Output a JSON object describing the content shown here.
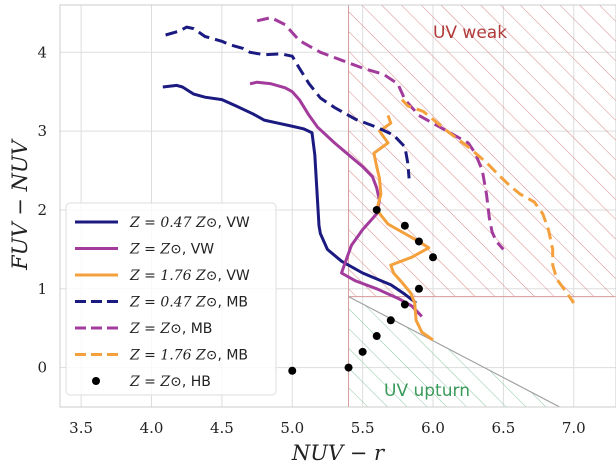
{
  "chart_data": {
    "type": "line",
    "xlabel": "NUV − r",
    "ylabel": "FUV − NUV",
    "xlim": [
      3.35,
      7.3
    ],
    "ylim": [
      -0.5,
      4.6
    ],
    "xticks": [
      "3.5",
      "4.0",
      "4.5",
      "5.0",
      "5.5",
      "6.0",
      "6.5",
      "7.0"
    ],
    "yticks": [
      "0",
      "1",
      "2",
      "3",
      "4"
    ],
    "grid": true,
    "legend": "lower-left",
    "regions": [
      {
        "name": "UV weak",
        "color": "#b03a3a",
        "polygon": [
          [
            5.4,
            0.9
          ],
          [
            7.3,
            0.9
          ],
          [
            7.3,
            4.6
          ],
          [
            5.4,
            4.6
          ]
        ]
      },
      {
        "name": "UV upturn",
        "color": "#3a9a5a",
        "polygon": [
          [
            5.4,
            -0.5
          ],
          [
            6.9,
            -0.5
          ],
          [
            5.4,
            0.9
          ]
        ]
      }
    ],
    "series": [
      {
        "name": "Z = 0.47 Z⊙, VW",
        "color": "#1a1a80",
        "dash": "solid",
        "points": [
          [
            4.08,
            3.56
          ],
          [
            4.18,
            3.58
          ],
          [
            4.22,
            3.56
          ],
          [
            4.3,
            3.47
          ],
          [
            4.38,
            3.43
          ],
          [
            4.5,
            3.4
          ],
          [
            4.6,
            3.32
          ],
          [
            4.72,
            3.22
          ],
          [
            4.8,
            3.14
          ],
          [
            4.9,
            3.1
          ],
          [
            4.98,
            3.07
          ],
          [
            5.08,
            3.03
          ],
          [
            5.14,
            2.98
          ],
          [
            5.16,
            2.7
          ],
          [
            5.17,
            2.4
          ],
          [
            5.18,
            2.1
          ],
          [
            5.19,
            1.8
          ],
          [
            5.2,
            1.7
          ],
          [
            5.25,
            1.5
          ],
          [
            5.35,
            1.35
          ],
          [
            5.5,
            1.2
          ],
          [
            5.7,
            1.05
          ],
          [
            5.8,
            0.93
          ],
          [
            5.88,
            0.82
          ]
        ]
      },
      {
        "name": "Z = Z⊙, VW",
        "color": "#a23b9c",
        "dash": "solid",
        "points": [
          [
            4.7,
            3.6
          ],
          [
            4.75,
            3.62
          ],
          [
            4.85,
            3.6
          ],
          [
            4.95,
            3.55
          ],
          [
            5.0,
            3.5
          ],
          [
            5.05,
            3.4
          ],
          [
            5.12,
            3.2
          ],
          [
            5.18,
            3.05
          ],
          [
            5.3,
            2.85
          ],
          [
            5.4,
            2.7
          ],
          [
            5.5,
            2.55
          ],
          [
            5.57,
            2.42
          ],
          [
            5.6,
            2.28
          ],
          [
            5.62,
            2.12
          ],
          [
            5.6,
            1.95
          ],
          [
            5.5,
            1.75
          ],
          [
            5.42,
            1.55
          ],
          [
            5.38,
            1.35
          ],
          [
            5.35,
            1.2
          ],
          [
            5.45,
            1.1
          ],
          [
            5.6,
            1.0
          ],
          [
            5.75,
            0.88
          ],
          [
            5.85,
            0.78
          ],
          [
            5.92,
            0.65
          ]
        ]
      },
      {
        "name": "Z = 1.76 Z⊙, VW",
        "color": "#f4a13d",
        "dash": "solid",
        "points": [
          [
            5.68,
            3.2
          ],
          [
            5.7,
            3.1
          ],
          [
            5.62,
            3.0
          ],
          [
            5.68,
            2.85
          ],
          [
            5.58,
            2.72
          ],
          [
            5.6,
            2.55
          ],
          [
            5.62,
            2.4
          ],
          [
            5.63,
            2.2
          ],
          [
            5.6,
            2.0
          ],
          [
            5.68,
            1.82
          ],
          [
            5.78,
            1.72
          ],
          [
            5.88,
            1.62
          ],
          [
            5.97,
            1.52
          ],
          [
            5.85,
            1.4
          ],
          [
            5.7,
            1.3
          ],
          [
            5.72,
            1.2
          ],
          [
            5.78,
            1.08
          ],
          [
            5.84,
            0.95
          ],
          [
            5.87,
            0.82
          ],
          [
            5.88,
            0.6
          ],
          [
            5.92,
            0.45
          ],
          [
            6.0,
            0.35
          ]
        ]
      },
      {
        "name": "Z = 0.47 Z⊙, MB",
        "color": "#1a1a80",
        "dash": "dashed",
        "points": [
          [
            4.1,
            4.22
          ],
          [
            4.2,
            4.27
          ],
          [
            4.25,
            4.32
          ],
          [
            4.3,
            4.3
          ],
          [
            4.38,
            4.2
          ],
          [
            4.5,
            4.14
          ],
          [
            4.55,
            4.1
          ],
          [
            4.65,
            4.05
          ],
          [
            4.7,
            4.0
          ],
          [
            4.8,
            3.97
          ],
          [
            4.92,
            3.98
          ],
          [
            5.0,
            3.95
          ],
          [
            5.05,
            3.8
          ],
          [
            5.12,
            3.6
          ],
          [
            5.2,
            3.42
          ],
          [
            5.3,
            3.3
          ],
          [
            5.45,
            3.15
          ],
          [
            5.6,
            3.05
          ],
          [
            5.72,
            2.95
          ],
          [
            5.8,
            2.8
          ],
          [
            5.82,
            2.6
          ],
          [
            5.83,
            2.4
          ]
        ]
      },
      {
        "name": "Z = Z⊙, MB",
        "color": "#a23b9c",
        "dash": "dashed",
        "points": [
          [
            4.75,
            4.4
          ],
          [
            4.85,
            4.44
          ],
          [
            4.95,
            4.35
          ],
          [
            5.05,
            4.15
          ],
          [
            5.2,
            4.0
          ],
          [
            5.35,
            3.9
          ],
          [
            5.5,
            3.8
          ],
          [
            5.65,
            3.72
          ],
          [
            5.75,
            3.6
          ],
          [
            5.8,
            3.4
          ],
          [
            5.9,
            3.2
          ],
          [
            6.05,
            3.05
          ],
          [
            6.15,
            2.95
          ],
          [
            6.25,
            2.85
          ],
          [
            6.3,
            2.72
          ],
          [
            6.35,
            2.5
          ],
          [
            6.38,
            2.2
          ],
          [
            6.4,
            1.9
          ],
          [
            6.42,
            1.72
          ],
          [
            6.45,
            1.6
          ],
          [
            6.5,
            1.5
          ]
        ]
      },
      {
        "name": "Z = 1.76 Z⊙, MB",
        "color": "#f4a13d",
        "dash": "dashed",
        "points": [
          [
            5.78,
            3.4
          ],
          [
            5.82,
            3.32
          ],
          [
            5.93,
            3.25
          ],
          [
            6.0,
            3.15
          ],
          [
            6.1,
            3.0
          ],
          [
            6.25,
            2.8
          ],
          [
            6.38,
            2.6
          ],
          [
            6.48,
            2.42
          ],
          [
            6.55,
            2.3
          ],
          [
            6.62,
            2.2
          ],
          [
            6.72,
            2.1
          ],
          [
            6.78,
            1.95
          ],
          [
            6.82,
            1.75
          ],
          [
            6.85,
            1.5
          ],
          [
            6.85,
            1.3
          ],
          [
            6.88,
            1.12
          ],
          [
            6.95,
            0.95
          ],
          [
            7.0,
            0.82
          ]
        ]
      }
    ],
    "hb_points": {
      "name": "Z = Z⊙, HB",
      "color": "#000000",
      "points": [
        [
          5.0,
          -0.04
        ],
        [
          5.4,
          0.0
        ],
        [
          5.5,
          0.2
        ],
        [
          5.6,
          0.4
        ],
        [
          5.7,
          0.6
        ],
        [
          5.8,
          0.8
        ],
        [
          5.9,
          1.0
        ],
        [
          6.0,
          1.4
        ],
        [
          5.9,
          1.6
        ],
        [
          5.8,
          1.8
        ],
        [
          5.6,
          2.0
        ]
      ]
    },
    "legend_entries": [
      {
        "label_math": "Z = 0.47 Z⊙",
        "label_tag": ", VW"
      },
      {
        "label_math": "Z = Z⊙",
        "label_tag": ", VW"
      },
      {
        "label_math": "Z = 1.76 Z⊙",
        "label_tag": ", VW"
      },
      {
        "label_math": "Z = 0.47 Z⊙",
        "label_tag": ", MB"
      },
      {
        "label_math": "Z = Z⊙",
        "label_tag": ", MB"
      },
      {
        "label_math": "Z = 1.76 Z⊙",
        "label_tag": ", MB"
      },
      {
        "label_math": "Z = Z⊙",
        "label_tag": ", HB"
      }
    ]
  }
}
